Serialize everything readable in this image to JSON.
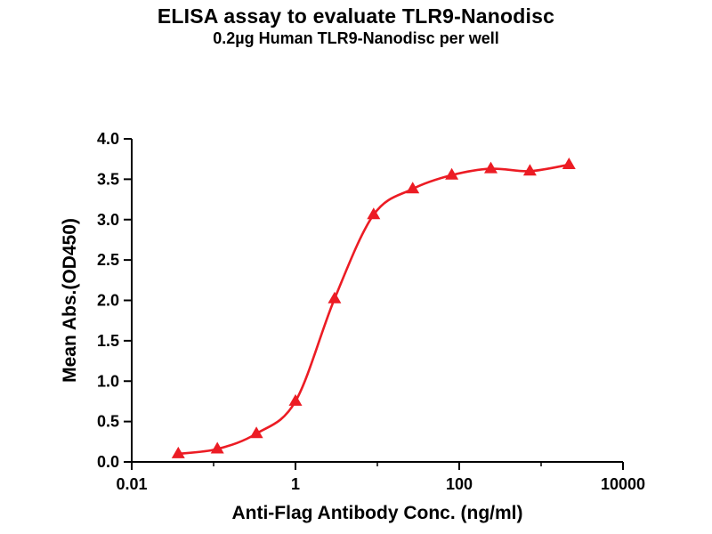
{
  "chart_data": {
    "type": "scatter",
    "title": "ELISA assay to evaluate TLR9-Nanodisc",
    "subtitle": "0.2µg Human TLR9-Nanodisc per well",
    "xlabel": "Anti-Flag Antibody Conc. (ng/ml)",
    "ylabel": "Mean Abs.(OD450)",
    "x_scale": "log",
    "xlim": [
      0.01,
      10000
    ],
    "ylim": [
      0,
      4
    ],
    "grid": false,
    "legend": "none",
    "x_tick_values": [
      0.01,
      1,
      100,
      10000
    ],
    "x_tick_labels": [
      "0.01",
      "1",
      "100",
      "10000"
    ],
    "x_minor_tick_values": [
      0.1,
      10,
      1000
    ],
    "y_tick_values": [
      0,
      0.5,
      1.0,
      1.5,
      2.0,
      2.5,
      3.0,
      3.5,
      4.0
    ],
    "y_tick_labels": [
      "0.0",
      "0.5",
      "1.0",
      "1.5",
      "2.0",
      "2.5",
      "3.0",
      "3.5",
      "4.0"
    ],
    "series": [
      {
        "name": "Human TLR9-Nanodisc",
        "color": "#EC1C24",
        "marker": "triangle-up",
        "line": "sigmoid-fit",
        "x": [
          0.037,
          0.111,
          0.333,
          1,
          3,
          9,
          27,
          81,
          243,
          729,
          2187
        ],
        "y": [
          0.1,
          0.16,
          0.35,
          0.75,
          2.02,
          3.06,
          3.38,
          3.55,
          3.63,
          3.6,
          3.68
        ]
      }
    ],
    "axis_color": "#000000"
  }
}
